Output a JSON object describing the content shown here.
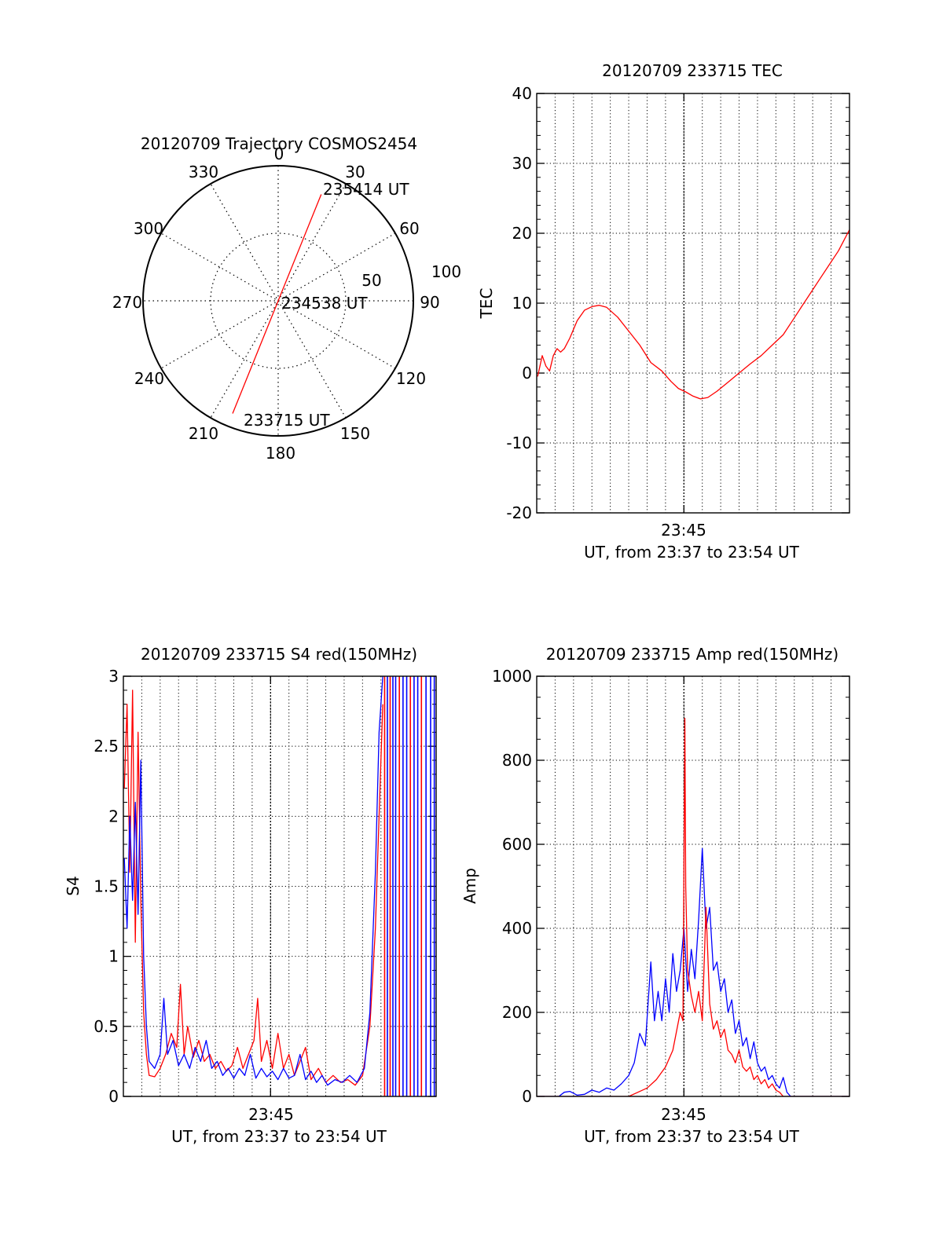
{
  "chart_data": [
    {
      "type": "polar",
      "title": "20120709 Trajectory COSMOS2454",
      "angle_ticks": [
        "0",
        "30",
        "60",
        "90",
        "120",
        "150",
        "180",
        "210",
        "240",
        "270",
        "300",
        "330"
      ],
      "radial_ticks": [
        "50",
        "100"
      ],
      "rmax": 100,
      "line_color": "#ff0000",
      "trajectory": {
        "start": {
          "az": 202,
          "el": 90
        },
        "end": {
          "az": 22,
          "el": 85
        }
      },
      "annotations": [
        {
          "label": "235414 UT",
          "az": 22,
          "r": 85
        },
        {
          "label": "234538 UT",
          "az": 0,
          "r": 0
        },
        {
          "label": "233715 UT",
          "az": 202,
          "r": 90
        }
      ]
    },
    {
      "type": "line",
      "title": "20120709 233715 TEC",
      "ylabel": "TEC",
      "xlabel": "UT, from 23:37 to 23:54 UT",
      "xtick_labels": [
        "23:45"
      ],
      "xlim": [
        0,
        17
      ],
      "ylim": [
        -20,
        40
      ],
      "yticks": [
        -20,
        -10,
        0,
        10,
        20,
        30,
        40
      ],
      "grid": true,
      "series": [
        {
          "color": "#ff0000",
          "points": [
            [
              0.05,
              -0.5
            ],
            [
              0.3,
              2.5
            ],
            [
              0.5,
              1
            ],
            [
              0.7,
              0.3
            ],
            [
              0.9,
              2.5
            ],
            [
              1.1,
              3.5
            ],
            [
              1.3,
              3
            ],
            [
              1.5,
              3.5
            ],
            [
              1.8,
              5
            ],
            [
              2.2,
              7.5
            ],
            [
              2.6,
              9
            ],
            [
              3.0,
              9.5
            ],
            [
              3.4,
              9.7
            ],
            [
              3.8,
              9.4
            ],
            [
              4.4,
              8
            ],
            [
              5.0,
              6
            ],
            [
              5.6,
              4
            ],
            [
              6.2,
              1.5
            ],
            [
              6.8,
              0.3
            ],
            [
              7.3,
              -1.2
            ],
            [
              7.7,
              -2.2
            ],
            [
              8.1,
              -2.7
            ],
            [
              8.5,
              -3.3
            ],
            [
              8.9,
              -3.7
            ],
            [
              9.3,
              -3.5
            ],
            [
              9.8,
              -2.6
            ],
            [
              10.4,
              -1.3
            ],
            [
              11.0,
              0
            ],
            [
              11.6,
              1.3
            ],
            [
              12.2,
              2.5
            ],
            [
              12.8,
              4
            ],
            [
              13.4,
              5.5
            ],
            [
              13.9,
              7.5
            ],
            [
              14.4,
              9.5
            ],
            [
              14.9,
              11.5
            ],
            [
              15.4,
              13.5
            ],
            [
              15.9,
              15.5
            ],
            [
              16.4,
              17.5
            ],
            [
              16.8,
              19.5
            ],
            [
              17.0,
              20.5
            ]
          ]
        }
      ]
    },
    {
      "type": "line",
      "title": "20120709 233715 S4 red(150MHz)",
      "ylabel": "S4",
      "xlabel": "UT, from 23:37 to 23:54 UT",
      "xtick_labels": [
        "23:45"
      ],
      "xlim": [
        0,
        17
      ],
      "ylim": [
        0,
        3
      ],
      "yticks": [
        0,
        0.5,
        1,
        1.5,
        2,
        2.5,
        3
      ],
      "grid": true,
      "series": [
        {
          "color": "#ff0000",
          "points": [
            [
              0.05,
              2.2
            ],
            [
              0.2,
              2.8
            ],
            [
              0.35,
              1.6
            ],
            [
              0.5,
              2.9
            ],
            [
              0.65,
              1.1
            ],
            [
              0.8,
              2.6
            ],
            [
              0.95,
              1.4
            ],
            [
              1.1,
              0.6
            ],
            [
              1.25,
              0.3
            ],
            [
              1.4,
              0.15
            ],
            [
              1.7,
              0.14
            ],
            [
              2.0,
              0.2
            ],
            [
              2.3,
              0.3
            ],
            [
              2.6,
              0.45
            ],
            [
              2.9,
              0.35
            ],
            [
              3.1,
              0.8
            ],
            [
              3.3,
              0.3
            ],
            [
              3.5,
              0.5
            ],
            [
              3.8,
              0.28
            ],
            [
              4.1,
              0.4
            ],
            [
              4.4,
              0.25
            ],
            [
              4.7,
              0.3
            ],
            [
              5.0,
              0.2
            ],
            [
              5.3,
              0.25
            ],
            [
              5.6,
              0.18
            ],
            [
              5.9,
              0.22
            ],
            [
              6.2,
              0.35
            ],
            [
              6.5,
              0.2
            ],
            [
              6.8,
              0.3
            ],
            [
              7.1,
              0.4
            ],
            [
              7.3,
              0.7
            ],
            [
              7.5,
              0.25
            ],
            [
              7.8,
              0.4
            ],
            [
              8.1,
              0.2
            ],
            [
              8.4,
              0.45
            ],
            [
              8.7,
              0.2
            ],
            [
              9.0,
              0.3
            ],
            [
              9.3,
              0.15
            ],
            [
              9.6,
              0.25
            ],
            [
              9.9,
              0.35
            ],
            [
              10.2,
              0.12
            ],
            [
              10.6,
              0.2
            ],
            [
              11.0,
              0.1
            ],
            [
              11.4,
              0.15
            ],
            [
              11.8,
              0.1
            ],
            [
              12.2,
              0.12
            ],
            [
              12.6,
              0.08
            ],
            [
              13.0,
              0.15
            ],
            [
              13.4,
              0.5
            ],
            [
              13.7,
              1.2
            ],
            [
              13.9,
              2.0
            ],
            [
              14.1,
              2.8
            ]
          ]
        },
        {
          "color": "#0000ff",
          "points": [
            [
              0.05,
              1.7
            ],
            [
              0.2,
              1.2
            ],
            [
              0.35,
              2.0
            ],
            [
              0.5,
              1.4
            ],
            [
              0.65,
              2.1
            ],
            [
              0.8,
              1.3
            ],
            [
              0.95,
              2.4
            ],
            [
              1.1,
              1.0
            ],
            [
              1.25,
              0.5
            ],
            [
              1.4,
              0.25
            ],
            [
              1.7,
              0.2
            ],
            [
              2.0,
              0.3
            ],
            [
              2.2,
              0.7
            ],
            [
              2.4,
              0.3
            ],
            [
              2.7,
              0.4
            ],
            [
              3.0,
              0.22
            ],
            [
              3.3,
              0.3
            ],
            [
              3.6,
              0.2
            ],
            [
              3.9,
              0.35
            ],
            [
              4.2,
              0.25
            ],
            [
              4.5,
              0.4
            ],
            [
              4.8,
              0.2
            ],
            [
              5.1,
              0.25
            ],
            [
              5.4,
              0.15
            ],
            [
              5.7,
              0.2
            ],
            [
              6.0,
              0.13
            ],
            [
              6.3,
              0.2
            ],
            [
              6.6,
              0.15
            ],
            [
              6.9,
              0.3
            ],
            [
              7.2,
              0.13
            ],
            [
              7.5,
              0.2
            ],
            [
              7.8,
              0.14
            ],
            [
              8.1,
              0.18
            ],
            [
              8.4,
              0.12
            ],
            [
              8.7,
              0.2
            ],
            [
              9.0,
              0.13
            ],
            [
              9.3,
              0.15
            ],
            [
              9.6,
              0.3
            ],
            [
              9.9,
              0.12
            ],
            [
              10.2,
              0.18
            ],
            [
              10.5,
              0.1
            ],
            [
              10.8,
              0.15
            ],
            [
              11.1,
              0.08
            ],
            [
              11.5,
              0.12
            ],
            [
              11.9,
              0.1
            ],
            [
              12.3,
              0.15
            ],
            [
              12.7,
              0.1
            ],
            [
              13.1,
              0.2
            ],
            [
              13.4,
              0.6
            ],
            [
              13.7,
              1.6
            ],
            [
              13.9,
              2.6
            ],
            [
              14.1,
              3.0
            ]
          ]
        }
      ]
    },
    {
      "type": "line",
      "title": "20120709 233715 Amp red(150MHz)",
      "ylabel": "Amp",
      "xlabel": "UT, from 23:37 to 23:54 UT",
      "xtick_labels": [
        "23:45"
      ],
      "xlim": [
        0,
        17
      ],
      "ylim": [
        0,
        1000
      ],
      "yticks": [
        0,
        200,
        400,
        600,
        800,
        1000
      ],
      "grid": true,
      "series": [
        {
          "color": "#0000ff",
          "points": [
            [
              0.0,
              0
            ],
            [
              1.2,
              0
            ],
            [
              1.5,
              10
            ],
            [
              1.8,
              12
            ],
            [
              2.2,
              3
            ],
            [
              2.6,
              5
            ],
            [
              3.0,
              15
            ],
            [
              3.4,
              10
            ],
            [
              3.8,
              20
            ],
            [
              4.2,
              15
            ],
            [
              4.6,
              30
            ],
            [
              5.0,
              50
            ],
            [
              5.3,
              80
            ],
            [
              5.6,
              150
            ],
            [
              5.9,
              120
            ],
            [
              6.2,
              320
            ],
            [
              6.4,
              180
            ],
            [
              6.6,
              250
            ],
            [
              6.8,
              180
            ],
            [
              7.0,
              280
            ],
            [
              7.2,
              200
            ],
            [
              7.4,
              340
            ],
            [
              7.6,
              250
            ],
            [
              7.8,
              300
            ],
            [
              8.0,
              400
            ],
            [
              8.2,
              250
            ],
            [
              8.4,
              350
            ],
            [
              8.6,
              280
            ],
            [
              8.8,
              420
            ],
            [
              9.0,
              590
            ],
            [
              9.2,
              400
            ],
            [
              9.4,
              450
            ],
            [
              9.6,
              300
            ],
            [
              9.8,
              320
            ],
            [
              10.0,
              250
            ],
            [
              10.2,
              280
            ],
            [
              10.4,
              200
            ],
            [
              10.6,
              230
            ],
            [
              10.8,
              150
            ],
            [
              11.0,
              180
            ],
            [
              11.2,
              120
            ],
            [
              11.4,
              140
            ],
            [
              11.6,
              90
            ],
            [
              11.8,
              130
            ],
            [
              12.0,
              80
            ],
            [
              12.2,
              60
            ],
            [
              12.4,
              70
            ],
            [
              12.6,
              40
            ],
            [
              12.8,
              50
            ],
            [
              13.0,
              30
            ],
            [
              13.2,
              20
            ],
            [
              13.4,
              45
            ],
            [
              13.6,
              10
            ],
            [
              13.8,
              0
            ],
            [
              17.0,
              0
            ]
          ]
        },
        {
          "color": "#ff0000",
          "points": [
            [
              0.0,
              0
            ],
            [
              5.0,
              0
            ],
            [
              5.5,
              10
            ],
            [
              6.0,
              20
            ],
            [
              6.5,
              40
            ],
            [
              7.0,
              70
            ],
            [
              7.4,
              110
            ],
            [
              7.8,
              200
            ],
            [
              7.95,
              180
            ],
            [
              8.05,
              900
            ],
            [
              8.1,
              500
            ],
            [
              8.2,
              300
            ],
            [
              8.4,
              240
            ],
            [
              8.6,
              200
            ],
            [
              8.8,
              250
            ],
            [
              9.0,
              180
            ],
            [
              9.2,
              450
            ],
            [
              9.4,
              220
            ],
            [
              9.6,
              160
            ],
            [
              9.8,
              180
            ],
            [
              10.0,
              140
            ],
            [
              10.2,
              160
            ],
            [
              10.4,
              110
            ],
            [
              10.6,
              100
            ],
            [
              10.8,
              80
            ],
            [
              11.0,
              110
            ],
            [
              11.2,
              70
            ],
            [
              11.4,
              60
            ],
            [
              11.6,
              70
            ],
            [
              11.8,
              40
            ],
            [
              12.0,
              50
            ],
            [
              12.2,
              30
            ],
            [
              12.4,
              40
            ],
            [
              12.6,
              20
            ],
            [
              12.8,
              30
            ],
            [
              13.0,
              15
            ],
            [
              13.2,
              10
            ],
            [
              13.4,
              0
            ],
            [
              17.0,
              0
            ]
          ]
        }
      ]
    }
  ]
}
